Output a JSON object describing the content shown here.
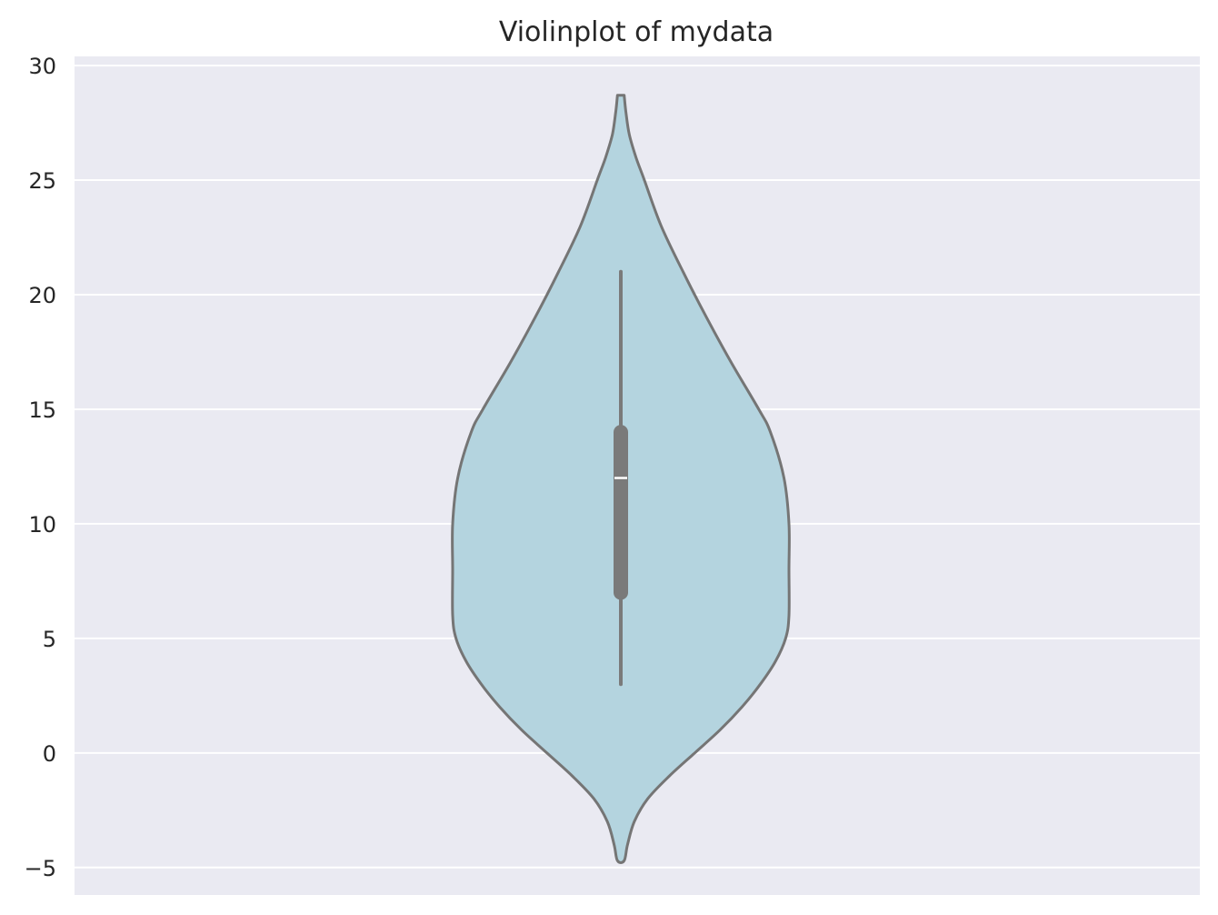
{
  "chart_data": {
    "type": "violin",
    "title": "Violinplot of mydata",
    "xlabel": "",
    "ylabel": "",
    "ylim": [
      -6.2,
      30.4
    ],
    "yticks": [
      -5,
      0,
      5,
      10,
      15,
      20,
      25,
      30
    ],
    "ytick_labels": [
      "−5",
      "0",
      "5",
      "10",
      "15",
      "20",
      "25",
      "30"
    ],
    "grid": true,
    "colors": {
      "background": "#eaeaf2",
      "violin_fill": "#b4d4df",
      "violin_edge": "#757575",
      "box": "#7a7a7a",
      "median": "#ffffff",
      "grid": "#ffffff"
    },
    "series": [
      {
        "min": 3,
        "q1": 7,
        "median": 12,
        "q3": 14,
        "max": 21,
        "kde_extent": [
          -4.7,
          28.7
        ],
        "density_profile": [
          [
            -4.7,
            0.02
          ],
          [
            -4.0,
            0.04
          ],
          [
            -3.0,
            0.08
          ],
          [
            -2.0,
            0.16
          ],
          [
            -1.0,
            0.29
          ],
          [
            0.0,
            0.44
          ],
          [
            1.0,
            0.59
          ],
          [
            2.0,
            0.72
          ],
          [
            3.0,
            0.83
          ],
          [
            4.0,
            0.92
          ],
          [
            5.0,
            0.98
          ],
          [
            6.0,
            1.0
          ],
          [
            8.0,
            1.0
          ],
          [
            10.0,
            1.0
          ],
          [
            12.0,
            0.97
          ],
          [
            14.0,
            0.89
          ],
          [
            15.0,
            0.82
          ],
          [
            17.0,
            0.66
          ],
          [
            19.0,
            0.51
          ],
          [
            21.0,
            0.37
          ],
          [
            23.0,
            0.24
          ],
          [
            25.0,
            0.14
          ],
          [
            26.0,
            0.09
          ],
          [
            27.0,
            0.05
          ],
          [
            28.0,
            0.03
          ],
          [
            28.7,
            0.02
          ]
        ]
      }
    ]
  }
}
